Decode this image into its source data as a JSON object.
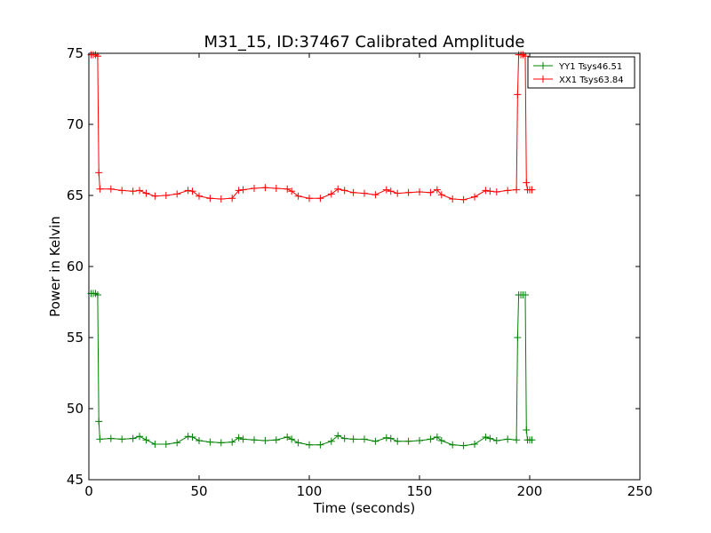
{
  "chart_data": {
    "type": "line",
    "title": "M31_15, ID:37467 Calibrated Amplitude",
    "xlabel": "Time (seconds)",
    "ylabel": "Power in Kelvin",
    "xlim": [
      0,
      250
    ],
    "ylim": [
      45,
      75
    ],
    "xticks": [
      "0",
      "50",
      "100",
      "150",
      "200",
      "250"
    ],
    "yticks": [
      "45",
      "50",
      "55",
      "60",
      "65",
      "70",
      "75"
    ],
    "grid": false,
    "legend_position": "top-right",
    "colors": {
      "XX1": "#ff0000",
      "YY1": "#008000"
    },
    "series": [
      {
        "name": "YY1 Tsys46.51",
        "color": "#008000",
        "marker": "plus",
        "points": [
          [
            1,
            58.1
          ],
          [
            2,
            58.1
          ],
          [
            3,
            58.1
          ],
          [
            4,
            58.0
          ],
          [
            4.5,
            49.1
          ],
          [
            5,
            47.85
          ],
          [
            10,
            47.9
          ],
          [
            15,
            47.85
          ],
          [
            20,
            47.9
          ],
          [
            23,
            48.05
          ],
          [
            26,
            47.8
          ],
          [
            30,
            47.5
          ],
          [
            35,
            47.5
          ],
          [
            40,
            47.6
          ],
          [
            45,
            48.05
          ],
          [
            47,
            48.0
          ],
          [
            50,
            47.75
          ],
          [
            55,
            47.65
          ],
          [
            60,
            47.6
          ],
          [
            65,
            47.65
          ],
          [
            68,
            47.95
          ],
          [
            70,
            47.85
          ],
          [
            75,
            47.8
          ],
          [
            80,
            47.75
          ],
          [
            85,
            47.8
          ],
          [
            90,
            48.0
          ],
          [
            92,
            47.85
          ],
          [
            95,
            47.6
          ],
          [
            100,
            47.45
          ],
          [
            105,
            47.45
          ],
          [
            110,
            47.7
          ],
          [
            113,
            48.1
          ],
          [
            116,
            47.9
          ],
          [
            120,
            47.85
          ],
          [
            125,
            47.85
          ],
          [
            130,
            47.7
          ],
          [
            135,
            47.95
          ],
          [
            137,
            47.9
          ],
          [
            140,
            47.7
          ],
          [
            145,
            47.7
          ],
          [
            150,
            47.75
          ],
          [
            155,
            47.85
          ],
          [
            158,
            48.0
          ],
          [
            160,
            47.75
          ],
          [
            165,
            47.45
          ],
          [
            170,
            47.4
          ],
          [
            175,
            47.5
          ],
          [
            180,
            48.0
          ],
          [
            182,
            47.9
          ],
          [
            185,
            47.75
          ],
          [
            190,
            47.85
          ],
          [
            194,
            47.8
          ],
          [
            194.5,
            55.0
          ],
          [
            195,
            58.0
          ],
          [
            196,
            58.0
          ],
          [
            197,
            58.0
          ],
          [
            198,
            58.0
          ],
          [
            198.5,
            48.5
          ],
          [
            199,
            47.8
          ],
          [
            200,
            47.8
          ],
          [
            201,
            47.8
          ]
        ]
      },
      {
        "name": "XX1 Tsys63.84",
        "color": "#ff0000",
        "marker": "plus",
        "points": [
          [
            1,
            74.9
          ],
          [
            2,
            74.9
          ],
          [
            3,
            74.9
          ],
          [
            4,
            74.8
          ],
          [
            4.5,
            66.6
          ],
          [
            5,
            65.45
          ],
          [
            10,
            65.45
          ],
          [
            15,
            65.35
          ],
          [
            20,
            65.3
          ],
          [
            23,
            65.35
          ],
          [
            26,
            65.15
          ],
          [
            30,
            64.95
          ],
          [
            35,
            65.0
          ],
          [
            40,
            65.1
          ],
          [
            45,
            65.35
          ],
          [
            47,
            65.3
          ],
          [
            50,
            64.95
          ],
          [
            55,
            64.8
          ],
          [
            60,
            64.75
          ],
          [
            65,
            64.8
          ],
          [
            68,
            65.35
          ],
          [
            70,
            65.4
          ],
          [
            75,
            65.5
          ],
          [
            80,
            65.55
          ],
          [
            85,
            65.5
          ],
          [
            90,
            65.45
          ],
          [
            92,
            65.3
          ],
          [
            95,
            64.95
          ],
          [
            100,
            64.8
          ],
          [
            105,
            64.8
          ],
          [
            110,
            65.1
          ],
          [
            113,
            65.45
          ],
          [
            116,
            65.35
          ],
          [
            120,
            65.2
          ],
          [
            125,
            65.15
          ],
          [
            130,
            65.05
          ],
          [
            135,
            65.4
          ],
          [
            137,
            65.3
          ],
          [
            140,
            65.15
          ],
          [
            145,
            65.2
          ],
          [
            150,
            65.25
          ],
          [
            155,
            65.2
          ],
          [
            158,
            65.4
          ],
          [
            160,
            65.05
          ],
          [
            165,
            64.75
          ],
          [
            170,
            64.7
          ],
          [
            175,
            64.9
          ],
          [
            180,
            65.35
          ],
          [
            182,
            65.3
          ],
          [
            185,
            65.25
          ],
          [
            190,
            65.35
          ],
          [
            194,
            65.4
          ],
          [
            194.5,
            72.1
          ],
          [
            195,
            74.9
          ],
          [
            196,
            74.9
          ],
          [
            197,
            74.9
          ],
          [
            198,
            74.8
          ],
          [
            198.5,
            65.9
          ],
          [
            199,
            65.4
          ],
          [
            200,
            65.4
          ],
          [
            201,
            65.4
          ]
        ]
      }
    ]
  }
}
